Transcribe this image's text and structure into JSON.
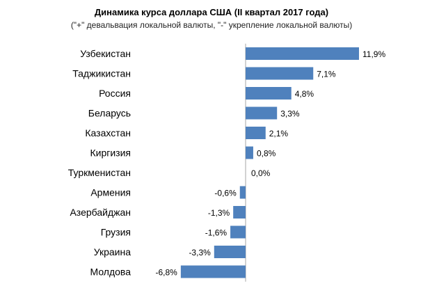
{
  "chart_data": {
    "type": "bar",
    "orientation": "horizontal",
    "title": "Динамика курса доллара США  (II квартал 2017 года)",
    "subtitle": "(\"+\" девальвация локальной валюты, \"-\" укрепление локальной валюты)",
    "categories": [
      "Узбекистан",
      "Таджикистан",
      "Россия",
      "Беларусь",
      "Казахстан",
      "Киргизия",
      "Туркменистан",
      "Армения",
      "Азербайджан",
      "Грузия",
      "Украина",
      "Молдова"
    ],
    "values": [
      11.9,
      7.1,
      4.8,
      3.3,
      2.1,
      0.8,
      0.0,
      -0.6,
      -1.3,
      -1.6,
      -3.3,
      -6.8
    ],
    "value_labels": [
      "11,9%",
      "7,1%",
      "4,8%",
      "3,3%",
      "2,1%",
      "0,8%",
      "0,0%",
      "-0,6%",
      "-1,3%",
      "-1,6%",
      "-3,3%",
      "-6,8%"
    ],
    "bar_color": "#4f81bd",
    "xlim": [
      -6.8,
      11.9
    ],
    "grid": false,
    "legend": "none"
  }
}
